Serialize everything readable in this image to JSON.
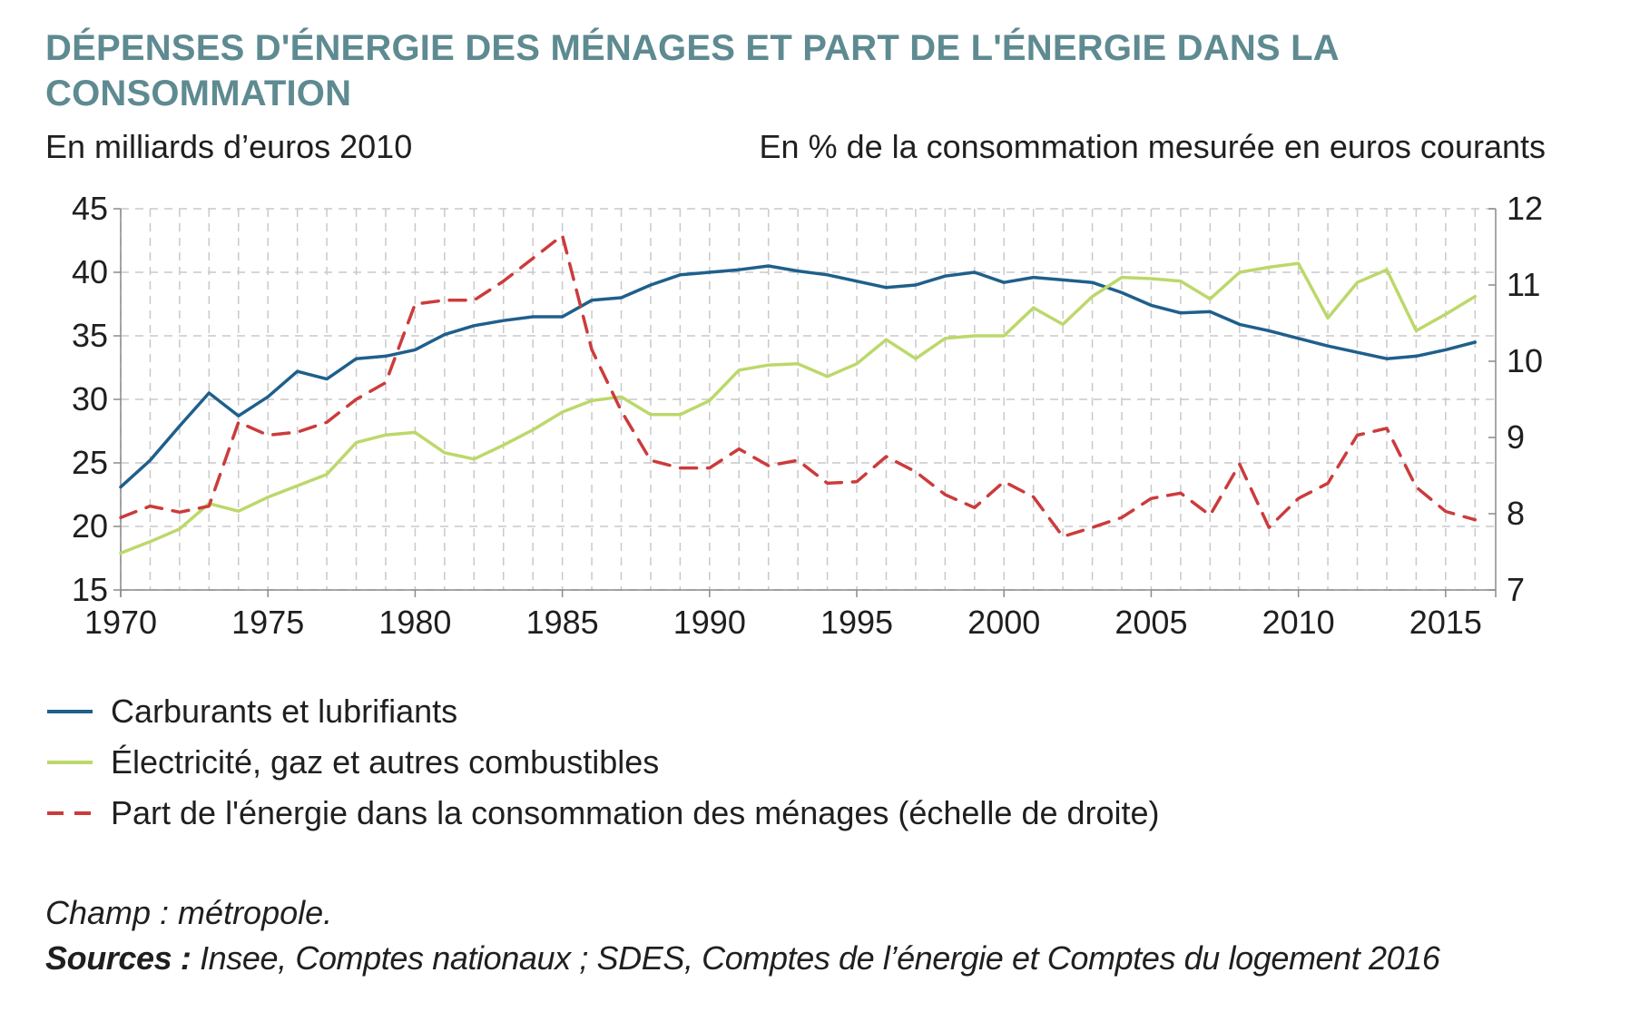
{
  "title": "DÉPENSES D'ÉNERGIE DES MÉNAGES ET PART DE L'ÉNERGIE DANS LA CONSOMMATION",
  "left_unit": "En milliards d’euros 2010",
  "right_unit": "En % de la consommation mesurée en euros courants",
  "note": "Champ : métropole.",
  "sources_label": "Sources :",
  "sources_text": " Insee, Comptes nationaux ; SDES, Comptes de l’énergie et Comptes du logement 2016",
  "chart_data": {
    "type": "line",
    "x": [
      1970,
      1971,
      1972,
      1973,
      1974,
      1975,
      1976,
      1977,
      1978,
      1979,
      1980,
      1981,
      1982,
      1983,
      1984,
      1985,
      1986,
      1987,
      1988,
      1989,
      1990,
      1991,
      1992,
      1993,
      1994,
      1995,
      1996,
      1997,
      1998,
      1999,
      2000,
      2001,
      2002,
      2003,
      2004,
      2005,
      2006,
      2007,
      2008,
      2009,
      2010,
      2011,
      2012,
      2013,
      2014,
      2015,
      2016
    ],
    "xlim": [
      1970,
      2016.7
    ],
    "x_ticks": [
      1970,
      1975,
      1980,
      1985,
      1990,
      1995,
      2000,
      2005,
      2010,
      2015
    ],
    "y_left": {
      "min": 15,
      "max": 45,
      "ticks": [
        15,
        20,
        25,
        30,
        35,
        40,
        45
      ]
    },
    "y_right": {
      "min": 7,
      "max": 12,
      "ticks": [
        7,
        8,
        9,
        10,
        11,
        12
      ]
    },
    "grid": true,
    "series": [
      {
        "name": "Carburants et lubrifiants",
        "axis": "left",
        "color": "#1f5f8b",
        "style": "solid",
        "values": [
          23.1,
          25.2,
          27.9,
          30.5,
          28.7,
          30.2,
          32.2,
          31.6,
          33.2,
          33.4,
          33.9,
          35.1,
          35.8,
          36.2,
          36.5,
          36.5,
          37.8,
          38.0,
          39.0,
          39.8,
          40.0,
          40.2,
          40.5,
          40.1,
          39.8,
          39.3,
          38.8,
          39.0,
          39.7,
          40.0,
          39.2,
          39.6,
          39.4,
          39.2,
          38.4,
          37.4,
          36.8,
          36.9,
          35.9,
          35.4,
          34.8,
          34.2,
          33.7,
          33.2,
          33.4,
          33.9,
          34.5
        ]
      },
      {
        "name": "Électricité, gaz et autres combustibles",
        "axis": "left",
        "color": "#bcd86a",
        "style": "solid",
        "values": [
          17.9,
          18.8,
          19.8,
          21.8,
          21.2,
          22.3,
          23.2,
          24.1,
          26.6,
          27.2,
          27.4,
          25.8,
          25.3,
          26.4,
          27.6,
          29.0,
          29.9,
          30.2,
          28.8,
          28.8,
          29.9,
          32.3,
          32.7,
          32.8,
          31.8,
          32.8,
          34.7,
          33.2,
          34.8,
          35.0,
          35.0,
          37.2,
          35.9,
          38.1,
          39.6,
          39.5,
          39.3,
          37.9,
          40.0,
          40.4,
          40.7,
          36.4,
          39.2,
          40.2,
          35.4,
          36.7,
          38.1
        ]
      },
      {
        "name": "Part de l'énergie dans la consommation des ménages (échelle de droite)",
        "axis": "right",
        "color": "#cc3b3b",
        "style": "dashed",
        "values": [
          7.95,
          8.1,
          8.02,
          8.1,
          9.2,
          9.03,
          9.07,
          9.2,
          9.5,
          9.72,
          10.75,
          10.8,
          10.8,
          11.05,
          11.35,
          11.65,
          10.15,
          9.35,
          8.7,
          8.6,
          8.6,
          8.85,
          8.63,
          8.7,
          8.4,
          8.42,
          8.75,
          8.55,
          8.25,
          8.08,
          8.42,
          8.22,
          7.7,
          7.82,
          7.95,
          8.2,
          8.27,
          7.98,
          8.65,
          7.82,
          8.2,
          8.4,
          9.03,
          9.12,
          8.35,
          8.03,
          7.92
        ]
      }
    ]
  }
}
